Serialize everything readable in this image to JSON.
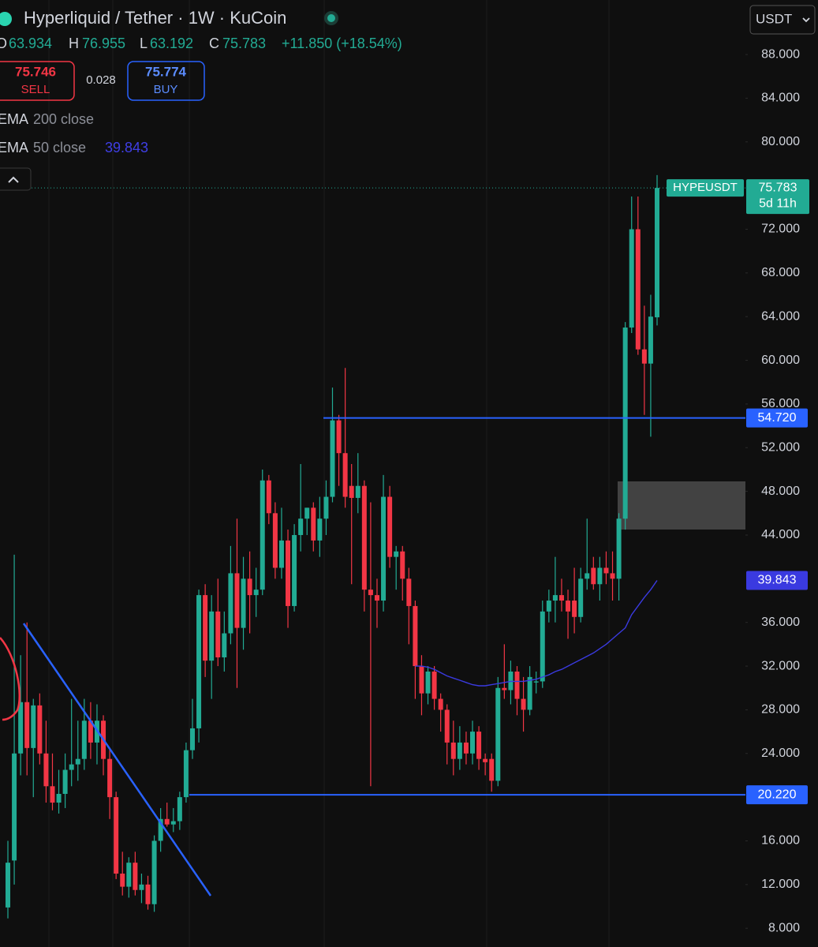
{
  "chart_data": {
    "type": "candlestick",
    "title": "Hyperliquid / Tether · 1W · KuCoin",
    "currency": "USDT",
    "ohlc_labels": [
      "O",
      "H",
      "L",
      "C"
    ],
    "change": "+11.850 (+18.54%)",
    "quote": {
      "sell": 75.746,
      "sell_label": "SELL",
      "spread": 0.028,
      "buy": 75.774,
      "buy_label": "BUY"
    },
    "symbol": "HYPEUSDT",
    "countdown": "5d 11h",
    "up_color": "#22ab94",
    "down_color": "#f23645",
    "candles": [
      [
        9.9,
        16,
        8.9,
        14
      ],
      [
        14.2,
        42.2,
        12,
        24
      ],
      [
        24,
        33,
        22,
        28.7
      ],
      [
        28.7,
        36,
        22,
        24.5
      ],
      [
        24.5,
        29,
        20,
        28.4
      ],
      [
        28.4,
        29.5,
        23,
        24
      ],
      [
        24,
        27,
        19.5,
        21
      ],
      [
        21,
        24,
        18.8,
        19.5
      ],
      [
        19.5,
        22.5,
        18.5,
        20.3
      ],
      [
        20.3,
        24,
        19,
        22.5
      ],
      [
        22.5,
        29,
        21,
        23
      ],
      [
        23,
        27,
        21.5,
        23.5
      ],
      [
        23.5,
        29,
        22.5,
        27
      ],
      [
        27,
        28.7,
        23.5,
        25
      ],
      [
        25,
        28.5,
        23,
        27
      ],
      [
        27,
        27.5,
        22,
        23.5
      ],
      [
        23.5,
        24.5,
        18,
        20
      ],
      [
        20,
        20.5,
        12.5,
        13
      ],
      [
        13,
        15,
        11,
        11.8
      ],
      [
        11.8,
        14.5,
        10.8,
        14
      ],
      [
        14,
        15,
        11,
        11.5
      ],
      [
        11.5,
        13,
        10.3,
        12
      ],
      [
        12,
        12.8,
        9.7,
        10.2
      ],
      [
        10.2,
        16.5,
        9.5,
        16
      ],
      [
        16,
        19,
        15,
        18
      ],
      [
        18,
        19.5,
        17.3,
        17.5
      ],
      [
        17.5,
        19,
        16.8,
        17.8
      ],
      [
        17.8,
        20.5,
        17,
        20
      ],
      [
        20,
        25,
        19.5,
        24.3
      ],
      [
        24.3,
        29,
        23.5,
        26.3
      ],
      [
        26.3,
        39,
        25,
        38.5
      ],
      [
        38.5,
        39.5,
        31,
        32.5
      ],
      [
        32.5,
        38.5,
        29,
        37
      ],
      [
        37,
        40,
        32,
        32.8
      ],
      [
        32.8,
        37,
        31.5,
        35
      ],
      [
        35,
        43,
        34,
        40.5
      ],
      [
        40.5,
        45.5,
        30,
        35.5
      ],
      [
        35.5,
        42,
        33.5,
        40
      ],
      [
        40,
        42.5,
        35,
        38.5
      ],
      [
        38.5,
        41,
        36.5,
        39
      ],
      [
        39,
        50,
        38.5,
        49
      ],
      [
        49,
        49.5,
        45,
        46
      ],
      [
        46,
        47,
        40,
        41
      ],
      [
        41,
        46.5,
        40,
        43.5
      ],
      [
        43.5,
        44.5,
        35.5,
        37.5
      ],
      [
        37.5,
        45,
        37,
        44
      ],
      [
        44,
        50.5,
        42.5,
        45.5
      ],
      [
        45.5,
        46.5,
        44,
        46.5
      ],
      [
        46.5,
        47,
        42.5,
        43.5
      ],
      [
        43.5,
        47.5,
        42,
        45.5
      ],
      [
        45.5,
        49,
        44,
        47.5
      ],
      [
        47.5,
        57.5,
        47,
        54.5
      ],
      [
        54.5,
        55,
        48.5,
        51.5
      ],
      [
        51.5,
        59.3,
        46.5,
        47.5
      ],
      [
        48.5,
        50.5,
        39.5,
        47.4
      ],
      [
        47.4,
        51.5,
        46,
        48.5
      ],
      [
        48.5,
        49,
        37,
        39
      ],
      [
        39,
        47,
        21,
        38.5
      ],
      [
        38.5,
        40,
        35.5,
        38
      ],
      [
        38,
        49.5,
        37,
        47.5
      ],
      [
        47.5,
        48.5,
        41,
        42
      ],
      [
        42,
        43,
        39,
        42.5
      ],
      [
        42.5,
        43,
        38,
        40
      ],
      [
        40,
        41,
        34,
        37.5
      ],
      [
        37.5,
        38,
        29,
        32
      ],
      [
        32,
        33,
        27.5,
        29.5
      ],
      [
        29.5,
        32,
        28.5,
        31.5
      ],
      [
        31.5,
        32,
        28,
        29
      ],
      [
        29,
        29.5,
        26,
        28
      ],
      [
        28,
        28.5,
        23,
        25
      ],
      [
        25,
        27,
        22,
        23.5
      ],
      [
        23.5,
        26.5,
        22.5,
        25
      ],
      [
        25,
        26,
        23,
        24
      ],
      [
        24,
        27,
        23,
        26
      ],
      [
        26,
        26.5,
        22.5,
        23.5
      ],
      [
        23.5,
        24,
        22,
        23.2
      ],
      [
        23.5,
        24,
        20.5,
        21.5
      ],
      [
        21.5,
        31,
        21,
        30
      ],
      [
        30,
        34,
        29,
        29.8
      ],
      [
        29.8,
        32.5,
        28.5,
        31.5
      ],
      [
        31.5,
        32,
        27.5,
        29
      ],
      [
        29,
        31,
        26,
        28
      ],
      [
        28,
        32,
        27.5,
        31
      ],
      [
        30.5,
        31.5,
        29.5,
        30.6
      ],
      [
        30.6,
        38,
        30,
        37
      ],
      [
        37,
        39,
        36,
        38
      ],
      [
        38,
        42,
        36,
        38.5
      ],
      [
        38.5,
        40,
        37,
        38
      ],
      [
        38,
        39,
        34.5,
        37
      ],
      [
        38,
        41,
        35,
        36.5
      ],
      [
        36.5,
        41,
        36,
        40
      ],
      [
        40,
        45.5,
        39,
        40.5
      ],
      [
        41,
        42,
        39,
        39.5
      ],
      [
        39.5,
        42,
        38,
        41
      ],
      [
        41,
        42.5,
        39.5,
        40.5
      ],
      [
        40.5,
        42.5,
        38,
        40
      ],
      [
        40,
        46,
        38,
        45.5
      ],
      [
        45.5,
        63.5,
        44.5,
        63
      ],
      [
        63,
        75,
        62.5,
        72
      ],
      [
        72,
        75,
        60.5,
        61
      ],
      [
        61,
        65,
        55,
        59.7
      ],
      [
        59.7,
        66,
        53,
        64
      ],
      [
        63.934,
        76.955,
        63.192,
        75.783
      ]
    ],
    "indicators": [
      {
        "name": "EMA",
        "params": "200 close"
      },
      {
        "name": "EMA",
        "params": "50 close",
        "color": "#3a3ae0",
        "values": [
          null,
          null,
          null,
          null,
          null,
          null,
          null,
          null,
          null,
          null,
          null,
          null,
          null,
          null,
          null,
          null,
          null,
          null,
          null,
          null,
          null,
          null,
          null,
          null,
          null,
          null,
          null,
          null,
          null,
          null,
          null,
          null,
          null,
          null,
          null,
          null,
          null,
          null,
          null,
          null,
          null,
          null,
          null,
          null,
          null,
          null,
          null,
          null,
          null,
          null,
          null,
          null,
          null,
          null,
          null,
          null,
          null,
          null,
          null,
          null,
          null,
          null,
          null,
          null,
          32,
          32,
          31.9,
          31.7,
          31.4,
          31.1,
          30.9,
          30.7,
          30.5,
          30.3,
          30.2,
          30.2,
          30.3,
          30.4,
          30.5,
          30.6,
          30.6,
          30.6,
          30.7,
          30.8,
          31,
          31.2,
          31.5,
          31.7,
          32,
          32.3,
          32.6,
          32.9,
          33.2,
          33.6,
          34,
          34.5,
          35,
          35.5,
          36.7,
          37.5,
          38.3,
          39,
          39.843
        ]
      }
    ],
    "levels": [
      {
        "value": 54.72,
        "label": "54.720",
        "color": "#2962ff"
      },
      {
        "value": 20.22,
        "label": "20.220",
        "color": "#2962ff"
      }
    ],
    "ylim": [
      6.28,
      92.99
    ],
    "yticks": [
      {
        "value": 88,
        "label": "88.000"
      },
      {
        "value": 84,
        "label": "84.000"
      },
      {
        "value": 80,
        "label": "80.000"
      },
      {
        "value": 72,
        "label": "72.000"
      },
      {
        "value": 68,
        "label": "68.000"
      },
      {
        "value": 64,
        "label": "64.000"
      },
      {
        "value": 60,
        "label": "60.000"
      },
      {
        "value": 56,
        "label": "56.000"
      },
      {
        "value": 52,
        "label": "52.000"
      },
      {
        "value": 48,
        "label": "48.000"
      },
      {
        "value": 44,
        "label": "44.000"
      },
      {
        "value": 36,
        "label": "36.000"
      },
      {
        "value": 32,
        "label": "32.000"
      },
      {
        "value": 28,
        "label": "28.000"
      },
      {
        "value": 24,
        "label": "24.000"
      },
      {
        "value": 16,
        "label": "16.000"
      },
      {
        "value": 12,
        "label": "12.000"
      },
      {
        "value": 8,
        "label": "8.000"
      }
    ]
  }
}
